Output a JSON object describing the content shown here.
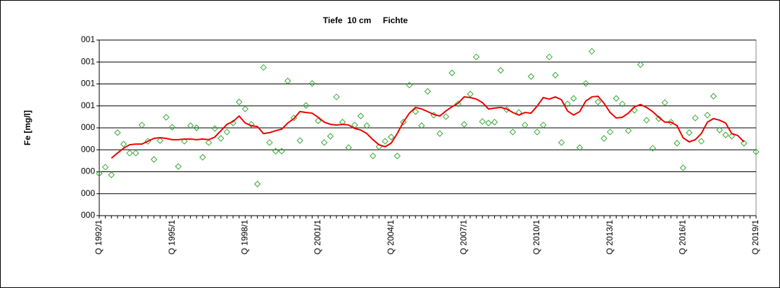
{
  "chart_data": {
    "type": "line",
    "title": "Tiefe  10 cm     Fichte",
    "y_label": "Fe [mg/l]",
    "categories": [
      "Q 1992/1",
      null,
      null,
      null,
      null,
      null,
      null,
      null,
      null,
      null,
      null,
      null,
      "Q 1995/1",
      null,
      null,
      null,
      null,
      null,
      null,
      null,
      null,
      null,
      null,
      null,
      "Q 1998/1",
      null,
      null,
      null,
      null,
      null,
      null,
      null,
      null,
      null,
      null,
      null,
      "Q 2001/1",
      null,
      null,
      null,
      null,
      null,
      null,
      null,
      null,
      null,
      null,
      null,
      "Q 2004/1",
      null,
      null,
      null,
      null,
      null,
      null,
      null,
      null,
      null,
      null,
      null,
      "Q 2007/1",
      null,
      null,
      null,
      null,
      null,
      null,
      null,
      null,
      null,
      null,
      null,
      "Q 2010/1",
      null,
      null,
      null,
      null,
      null,
      null,
      null,
      null,
      null,
      null,
      null,
      "Q 2013/1",
      null,
      null,
      null,
      null,
      null,
      null,
      null,
      null,
      null,
      null,
      null,
      "Q 2016/1",
      null,
      null,
      null,
      null,
      null,
      null,
      null,
      null,
      null,
      null,
      null,
      "Q 2019/1"
    ],
    "ylim": [
      0,
      0.8
    ],
    "yticks": [
      {
        "value": 0,
        "label": "000"
      },
      {
        "value": 0.1,
        "label": "000"
      },
      {
        "value": 0.2,
        "label": "000"
      },
      {
        "value": 0.3,
        "label": "000"
      },
      {
        "value": 0.4,
        "label": "000"
      },
      {
        "value": 0.5,
        "label": "001"
      },
      {
        "value": 0.6,
        "label": "001"
      },
      {
        "value": 0.7,
        "label": "001"
      },
      {
        "value": 0.8,
        "label": "001"
      }
    ],
    "grid": true,
    "series": [
      {
        "color": "#33aa33",
        "marker": "diamond",
        "line": false,
        "values": [
          0.192,
          0.221,
          0.186,
          0.378,
          0.326,
          0.285,
          0.285,
          0.413,
          0.339,
          0.256,
          0.342,
          0.448,
          0.403,
          0.224,
          0.339,
          0.41,
          0.4,
          0.266,
          0.333,
          0.397,
          0.352,
          0.381,
          0.422,
          0.518,
          0.486,
          0.416,
          0.144,
          0.675,
          0.333,
          0.294,
          0.294,
          0.614,
          0.445,
          0.342,
          0.502,
          0.602,
          0.432,
          0.333,
          0.362,
          0.541,
          0.426,
          0.31,
          0.413,
          0.454,
          0.41,
          0.272,
          0.314,
          0.339,
          0.358,
          0.272,
          0.426,
          0.595,
          0.474,
          0.41,
          0.566,
          0.458,
          0.374,
          0.451,
          0.65,
          0.509,
          0.416,
          0.554,
          0.723,
          0.429,
          0.422,
          0.426,
          0.662,
          0.483,
          0.381,
          0.47,
          0.413,
          0.634,
          0.381,
          0.413,
          0.723,
          0.64,
          0.333,
          0.509,
          0.534,
          0.31,
          0.602,
          0.749,
          0.518,
          0.352,
          0.381,
          0.534,
          0.509,
          0.387,
          0.48,
          0.688,
          0.435,
          0.307,
          0.442,
          0.515,
          0.426,
          0.33,
          0.218,
          0.378,
          0.445,
          0.339,
          0.458,
          0.544,
          0.39,
          0.368,
          0.362,
          null,
          0.33,
          null,
          0.291
        ]
      },
      {
        "color": "#ee0000",
        "marker": "none",
        "line": true,
        "values": [
          null,
          null,
          0.262,
          0.285,
          0.307,
          0.323,
          0.326,
          0.326,
          0.339,
          0.352,
          0.355,
          0.352,
          0.346,
          0.346,
          0.349,
          0.349,
          0.346,
          0.349,
          0.346,
          0.358,
          0.387,
          0.416,
          0.429,
          0.454,
          0.422,
          0.41,
          0.406,
          0.374,
          0.378,
          0.387,
          0.394,
          0.422,
          0.442,
          0.474,
          0.47,
          0.467,
          0.448,
          0.426,
          0.416,
          0.413,
          0.416,
          0.413,
          0.397,
          0.39,
          0.374,
          0.346,
          0.323,
          0.314,
          0.33,
          0.374,
          0.426,
          0.467,
          0.493,
          0.486,
          0.474,
          0.461,
          0.454,
          0.477,
          0.496,
          0.512,
          0.541,
          0.538,
          0.531,
          0.515,
          0.486,
          0.49,
          0.493,
          0.486,
          0.47,
          0.458,
          0.47,
          0.467,
          0.499,
          0.538,
          0.531,
          0.541,
          0.528,
          0.477,
          0.458,
          0.474,
          0.522,
          0.541,
          0.544,
          0.512,
          0.47,
          0.445,
          0.448,
          0.467,
          0.496,
          0.506,
          0.493,
          0.474,
          0.448,
          0.426,
          0.426,
          0.41,
          0.355,
          0.336,
          0.346,
          0.374,
          0.426,
          0.442,
          0.435,
          0.422,
          0.374,
          0.365,
          0.336,
          null,
          null
        ]
      }
    ]
  }
}
